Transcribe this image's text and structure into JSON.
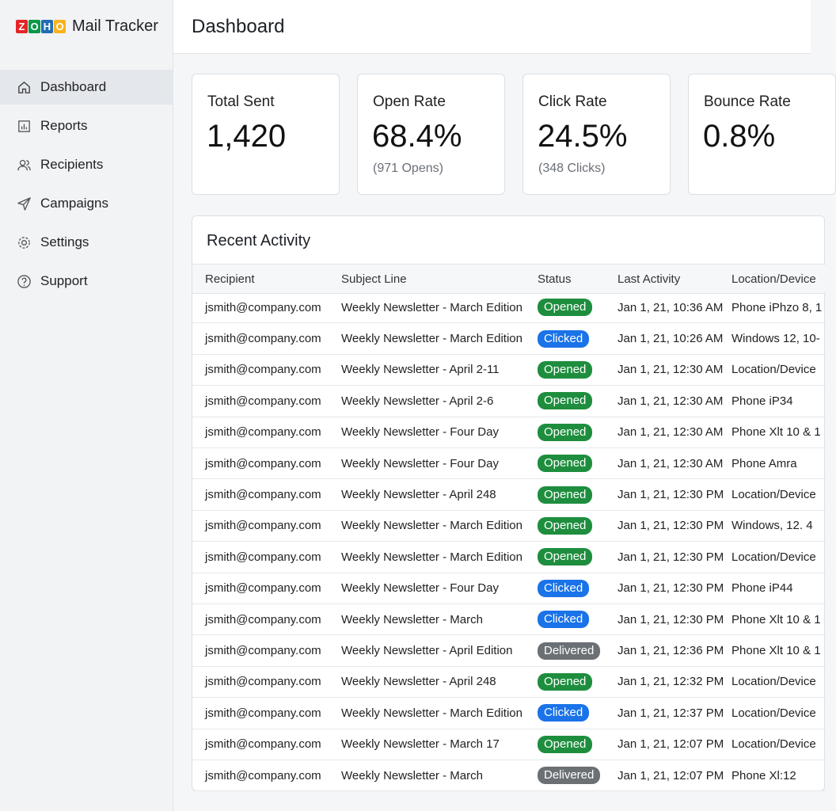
{
  "brand": {
    "logo": "ZOHO",
    "name": "Mail Tracker"
  },
  "nav": [
    "Dashboard",
    "Reports",
    "Recipients",
    "Campaigns",
    "Settings",
    "Support"
  ],
  "header": {
    "title": "Dashboard"
  },
  "cards": [
    {
      "label": "Total Sent",
      "value": "1,420"
    },
    {
      "label": "Open Rate",
      "value": "68.4%",
      "sub": "(971 Opens)"
    },
    {
      "label": "Click Rate",
      "value": "24.5%",
      "sub": "(348 Clicks)"
    },
    {
      "label": "Bounce Rate",
      "value": "0.8%"
    }
  ],
  "activity": {
    "title": "Recent Activity",
    "columns": [
      "Recipient",
      "Subject Line",
      "Status",
      "Last Activity",
      "Location/Device"
    ],
    "rows": [
      [
        "jsmith@company.com",
        "Weekly Newsletter - March Edition",
        {
          "text": "Opened",
          "color": "#1e8e3e"
        },
        "Jan 1, 21, 10:36 AM",
        "Phone iPhzo 8, 1"
      ],
      [
        "jsmith@company.com",
        "Weekly Newsletter - March Edition",
        {
          "text": "Clicked",
          "color": "#1a73e8"
        },
        "Jan 1, 21, 10:26 AM",
        "Windows 12, 10-"
      ],
      [
        "jsmith@company.com",
        "Weekly Newsletter - April 2-11",
        {
          "text": "Opened",
          "color": "#1e8e3e"
        },
        "Jan 1, 21, 12:30 AM",
        "Location/Device"
      ],
      [
        "jsmith@company.com",
        "Weekly Newsletter - April 2-6",
        {
          "text": "Opened",
          "color": "#1e8e3e"
        },
        "Jan 1, 21, 12:30 AM",
        "Phone iP34"
      ],
      [
        "jsmith@company.com",
        "Weekly Newsletter - Four Day",
        {
          "text": "Opened",
          "color": "#1e8e3e"
        },
        "Jan 1, 21, 12:30 AM",
        "Phone Xlt 10 & 1"
      ],
      [
        "jsmith@company.com",
        "Weekly Newsletter - Four Day",
        {
          "text": "Opened",
          "color": "#1e8e3e"
        },
        "Jan 1, 21, 12:30 AM",
        "Phone Amra"
      ],
      [
        "jsmith@company.com",
        "Weekly Newsletter - April 248",
        {
          "text": "Opened",
          "color": "#1e8e3e"
        },
        "Jan 1, 21, 12:30 PM",
        "Location/Device"
      ],
      [
        "jsmith@company.com",
        "Weekly Newsletter - March Edition",
        {
          "text": "Opened",
          "color": "#1e8e3e"
        },
        "Jan 1, 21, 12:30 PM",
        "Windows, 12. 4"
      ],
      [
        "jsmith@company.com",
        "Weekly Newsletter - March Edition",
        {
          "text": "Opened",
          "color": "#1e8e3e"
        },
        "Jan 1, 21, 12:30 PM",
        "Location/Device"
      ],
      [
        "jsmith@company.com",
        "Weekly Newsletter - Four Day",
        {
          "text": "Clicked",
          "color": "#1a73e8"
        },
        "Jan 1, 21, 12:30 PM",
        "Phone iP44"
      ],
      [
        "jsmith@company.com",
        "Weekly Newsletter - March",
        {
          "text": "Clicked",
          "color": "#1a73e8"
        },
        "Jan 1, 21, 12:30 PM",
        "Phone Xlt 10 & 1"
      ],
      [
        "jsmith@company.com",
        "Weekly Newsletter - April Edition",
        {
          "text": "Delivered",
          "color": "#6b7075"
        },
        "Jan 1, 21, 12:36 PM",
        "Phone Xlt 10 & 1"
      ],
      [
        "jsmith@company.com",
        "Weekly Newsletter - April 248",
        {
          "text": "Opened",
          "color": "#1e8e3e"
        },
        "Jan 1, 21, 12:32 PM",
        "Location/Device"
      ],
      [
        "jsmith@company.com",
        "Weekly Newsletter - March Edition",
        {
          "text": "Clicked",
          "color": "#1a73e8"
        },
        "Jan 1, 21, 12:37 PM",
        "Location/Device"
      ],
      [
        "jsmith@company.com",
        "Weekly Newsletter - March 17",
        {
          "text": "Opened",
          "color": "#1e8e3e"
        },
        "Jan 1, 21, 12:07 PM",
        "Location/Device"
      ],
      [
        "jsmith@company.com",
        "Weekly Newsletter - March",
        {
          "text": "Delivered",
          "color": "#6b7075"
        },
        "Jan 1, 21, 12:07 PM",
        "Phone Xl:12"
      ]
    ]
  }
}
